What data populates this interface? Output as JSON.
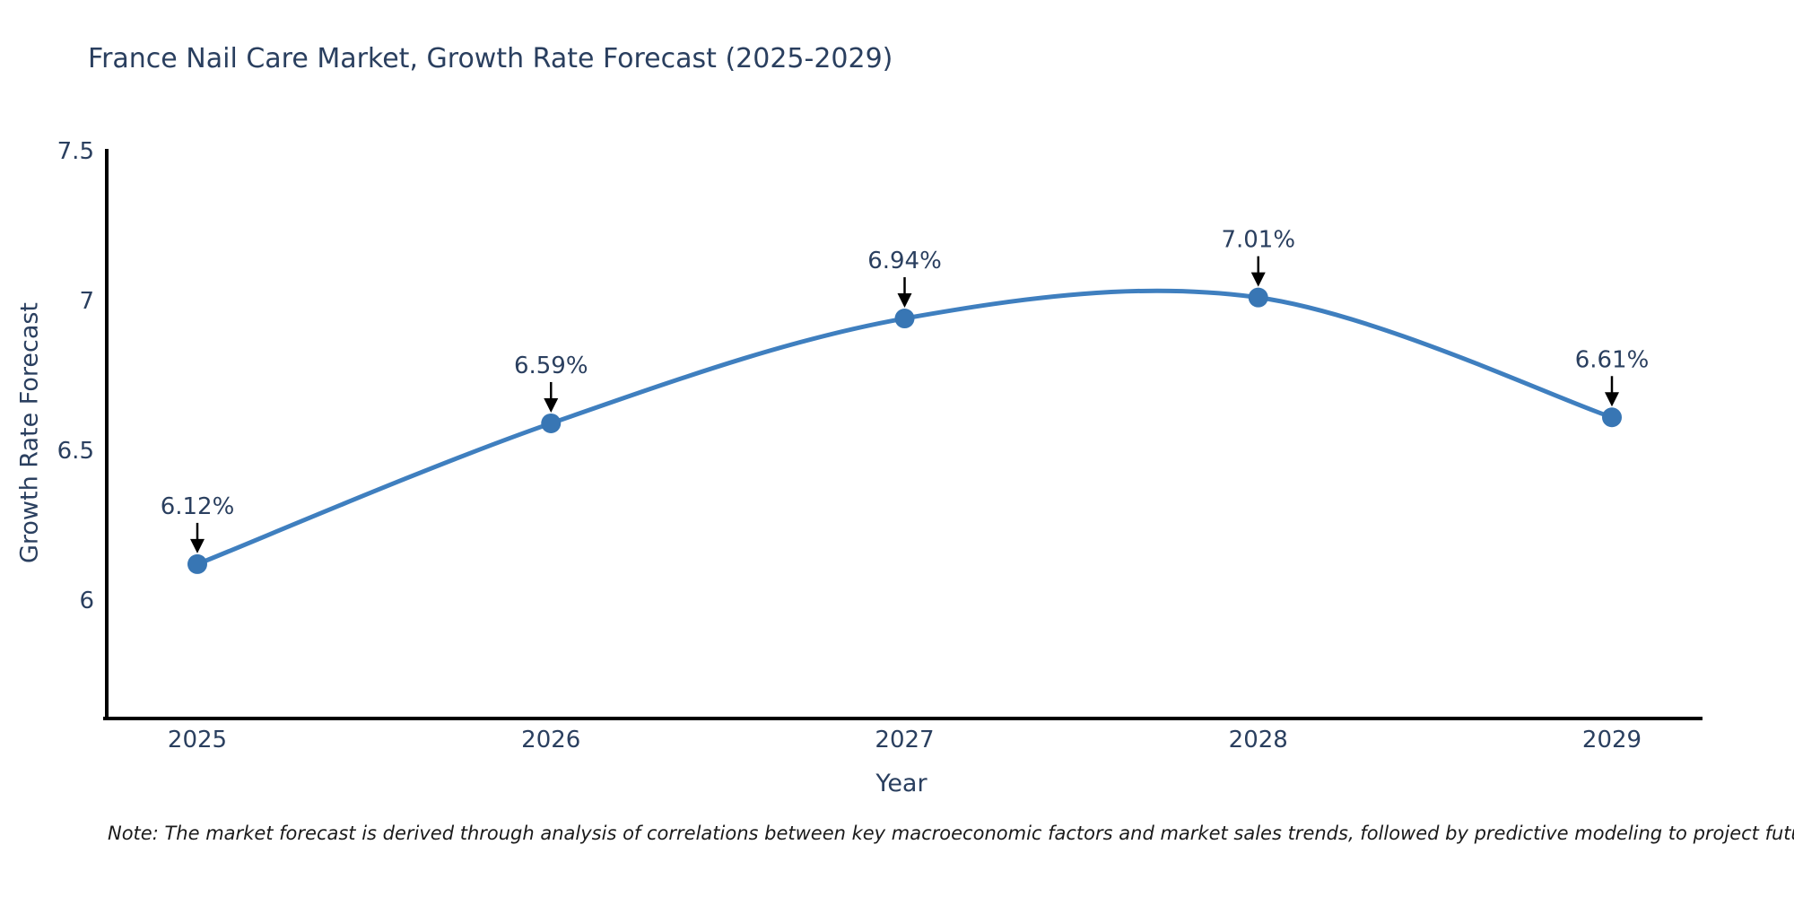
{
  "title": "France Nail Care Market, Growth Rate Forecast (2025-2029)",
  "note": "Note: The market forecast is derived through analysis of correlations between key macroeconomic factors and market sales trends, followed by predictive modeling to project future sales",
  "chart_data": {
    "type": "line",
    "title": "France Nail Care Market, Growth Rate Forecast (2025-2029)",
    "xlabel": "Year",
    "ylabel": "Growth Rate Forecast",
    "x": [
      2025,
      2026,
      2027,
      2028,
      2029
    ],
    "x_labels": [
      "2025",
      "2026",
      "2027",
      "2028",
      "2029"
    ],
    "values": [
      6.12,
      6.59,
      6.94,
      7.01,
      6.61
    ],
    "point_labels": [
      "6.12%",
      "6.59%",
      "6.94%",
      "7.01%",
      "6.61%"
    ],
    "ytick_values": [
      6,
      6.5,
      7,
      7.5
    ],
    "ytick_labels": [
      "6",
      "6.5",
      "7",
      "7.5"
    ],
    "ylim": [
      5.6,
      7.5
    ],
    "line_shape": "spline",
    "grid": false,
    "legend": "none",
    "annotation_style": "down-arrow",
    "colors": {
      "line": "#3f7fbf",
      "marker": "#3876b4",
      "axis": "#000000",
      "text": "#2a3f5f",
      "arrow": "#000000",
      "background": "#ffffff"
    }
  }
}
